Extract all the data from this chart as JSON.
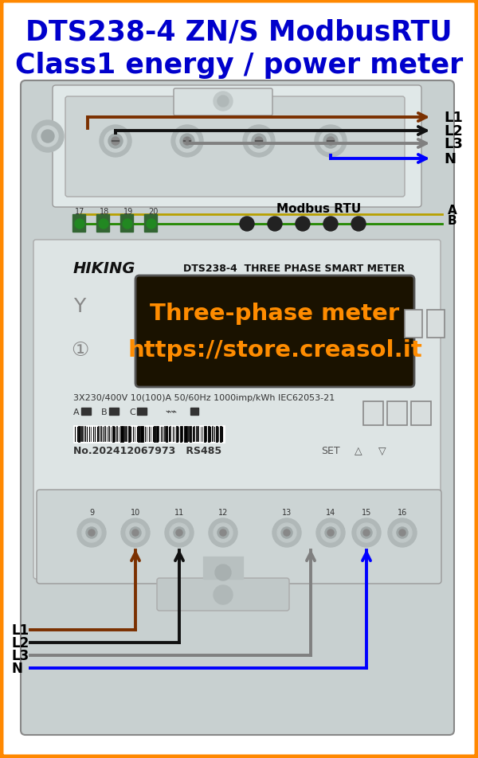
{
  "title_line1": "DTS238-4 ZN/S ModbusRTU",
  "title_line2": "Class1 energy / power meter",
  "title_color": "#0000cc",
  "bg_color": "#ffffff",
  "border_color": "#ff8800",
  "border_width": 5,
  "wire_colors": {
    "L1": "#7B3000",
    "L2": "#111111",
    "L3": "#808080",
    "N": "#0000ff"
  },
  "wire_lw": 2.8,
  "modbus_label": "Modbus RTU",
  "modbus_ab": [
    "A",
    "B"
  ],
  "modbus_color_A": "#b8a000",
  "modbus_color_B": "#228800",
  "display_text_line1": "Three-phase meter",
  "display_text_line2": "https://store.creasol.it",
  "display_bg": "#1a1200",
  "display_fg": "#ff8c00",
  "meter_bg": "#c8d0d0",
  "meter_face": "#dde4e4",
  "meter_brand": "HIKING",
  "meter_model": "DTS238-4  THREE PHASE SMART METER",
  "meter_spec": "3X230/400V 10(100)A 50/60Hz 1000imp/kWh IEC62053-21",
  "meter_serial": "No.202412067973   RS485",
  "figsize": [
    6.0,
    9.53
  ],
  "dpi": 100,
  "title_fs1": 25,
  "title_fs2": 25
}
